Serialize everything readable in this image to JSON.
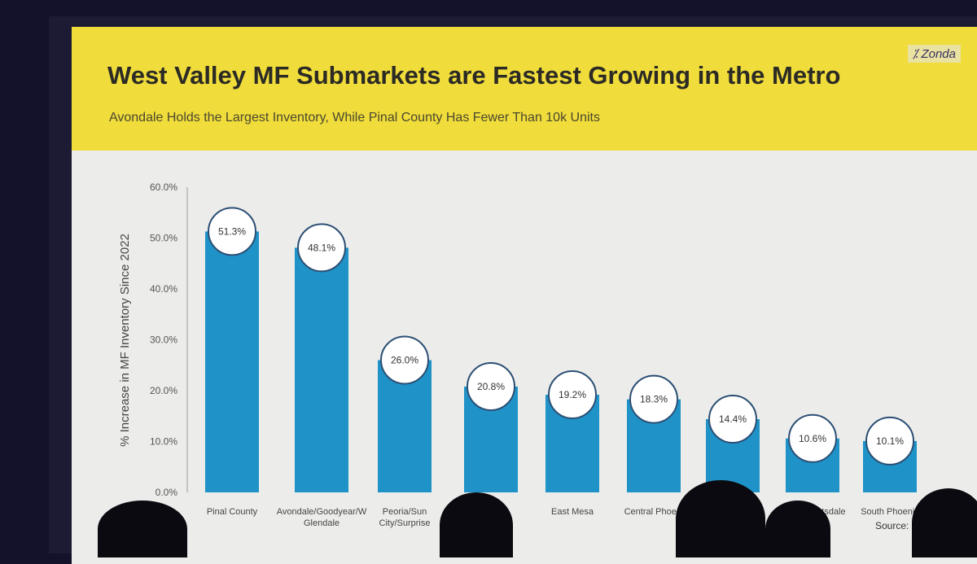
{
  "slide": {
    "title": "West Valley MF Submarkets are Fastest Growing in the Metro",
    "subtitle": "Avondale Holds the Largest Inventory, While Pinal County Has Fewer Than 10k Units",
    "logo": "⁒ Zonda",
    "source": "Source: Re"
  },
  "colors": {
    "header": "#f0dc3a",
    "bar": "#1f93c8",
    "circle_border": "#2c4f74"
  },
  "chart_data": {
    "type": "bar",
    "title": "West Valley MF Submarkets are Fastest Growing in the Metro",
    "xlabel": "",
    "ylabel": "% Increase in MF Inventory Since 2022",
    "ylim": [
      0,
      60
    ],
    "yticks": [
      "0.0%",
      "10.0%",
      "20.0%",
      "30.0%",
      "40.0%",
      "50.0%",
      "60.0%"
    ],
    "categories": [
      "Pinal County",
      "Avondale/Goodyear/W Glendale",
      "Peoria/Sun City/Surprise",
      "",
      "East Mesa",
      "Central Phoeni",
      "",
      "North Scottsdale",
      "South Phoenix"
    ],
    "values": [
      51.3,
      48.1,
      26.0,
      20.8,
      19.2,
      18.3,
      14.4,
      10.6,
      10.1
    ],
    "labels": [
      "51.3%",
      "48.1%",
      "26.0%",
      "20.8%",
      "19.2%",
      "18.3%",
      "14.4%",
      "10.6%",
      "10.1%"
    ]
  }
}
